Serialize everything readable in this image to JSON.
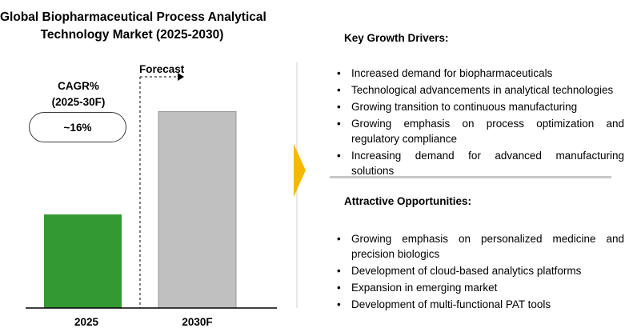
{
  "title": {
    "line1": "Global Biopharmaceutical Process Analytical",
    "line2": "Technology Market (2025-2030)"
  },
  "forecast_label": "Forecast",
  "cagr": {
    "title_line1": "CAGR%",
    "title_line2": "(2025-30F)",
    "value": "~16%"
  },
  "chart_data": {
    "type": "bar",
    "title": "Global Biopharmaceutical Process Analytical Technology Market (2025-2030)",
    "categories": [
      "2025",
      "2030F"
    ],
    "values": [
      1.0,
      2.1
    ],
    "bar_colors": [
      "#339933",
      "#c0c0c0"
    ],
    "ylim": [
      0,
      2.6
    ],
    "grid": false,
    "forecast_start_category": "2030F"
  },
  "colors": {
    "arrow": "#f5b800",
    "bar_2025": "#339933",
    "bar_2030": "#c0c0c0",
    "separator": "#c8c8c8"
  },
  "drivers": {
    "title": "Key Growth Drivers:",
    "items": [
      "Increased demand for biopharmaceuticals",
      "Technological advancements in analytical technologies",
      "Growing transition to continuous manufacturing",
      "Growing emphasis on process optimization and regulatory compliance",
      "Increasing demand for advanced manufacturing solutions"
    ]
  },
  "opportunities": {
    "title": "Attractive Opportunities:",
    "items": [
      "Growing emphasis on personalized medicine and precision biologics",
      "Development of cloud-based analytics platforms",
      "Expansion in emerging market",
      "Development of multi-functional PAT tools"
    ]
  },
  "bullet_char": "•"
}
